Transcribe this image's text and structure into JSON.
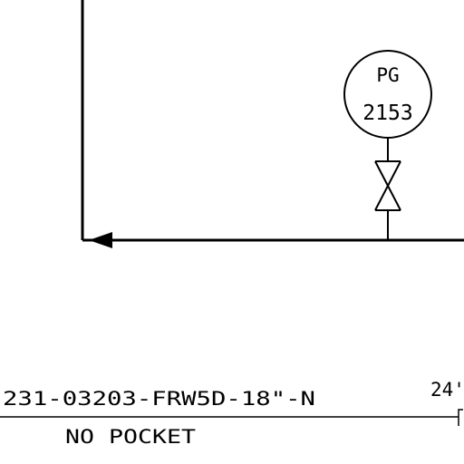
{
  "instrument": {
    "tag_type": "PG",
    "tag_number": "2153"
  },
  "line": {
    "designation": "231-03203-FRW5D-18\"-N",
    "note": "NO POCKET",
    "size_label": "24'"
  },
  "colors": {
    "line": "#000000",
    "background": "#ffffff"
  }
}
